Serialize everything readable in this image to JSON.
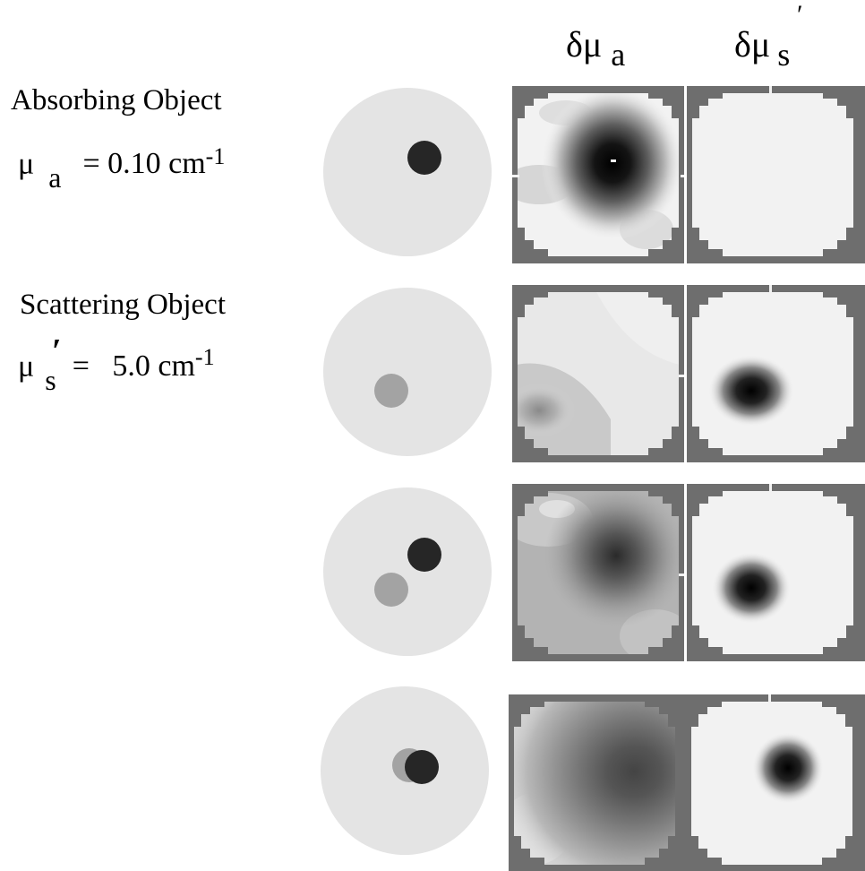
{
  "headers": {
    "col_a": {
      "base": "δμ",
      "sub": "a"
    },
    "col_s": {
      "base": "δμ",
      "sub": "s",
      "prime": "′"
    }
  },
  "legend": {
    "absorbing": {
      "title": "Absorbing Object",
      "symbol": "μ",
      "sub": "a",
      "value": "= 0.10 cm",
      "exp": "-1"
    },
    "scattering": {
      "title": "Scattering Object",
      "symbol": "μ",
      "sub": "s",
      "prime": "′",
      "value": "=   5.0 cm",
      "exp": "-1"
    }
  },
  "colors": {
    "phantom": "#e4e4e4",
    "absorber": "#262626",
    "scatterer": "#a3a3a3",
    "frame": "#6e6e6e",
    "background_img": "#f2f2f2"
  }
}
